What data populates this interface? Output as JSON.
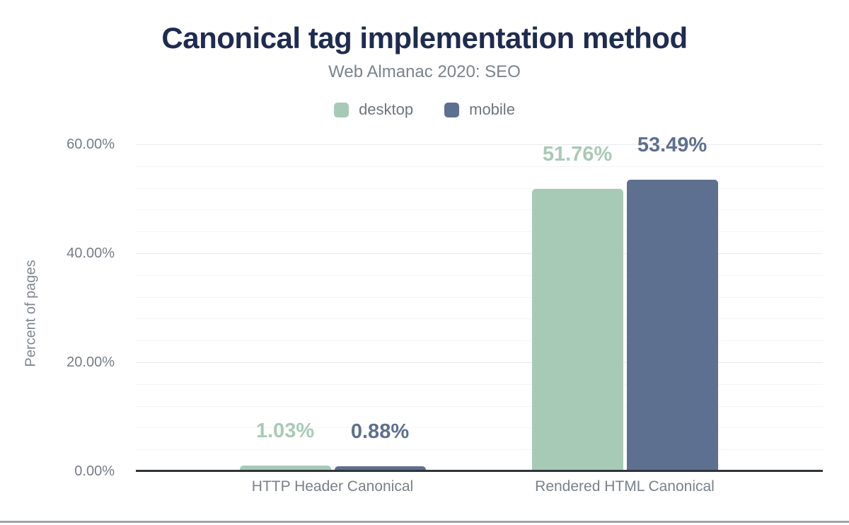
{
  "chart_data": {
    "type": "bar",
    "title": "Canonical tag implementation method",
    "subtitle": "Web Almanac 2020: SEO",
    "ylabel": "Percent of pages",
    "categories": [
      "HTTP Header Canonical",
      "Rendered HTML Canonical"
    ],
    "series": [
      {
        "name": "desktop",
        "color": "#a7cab7",
        "values": [
          1.03,
          51.76
        ],
        "value_labels": [
          "1.03%",
          "51.76%"
        ]
      },
      {
        "name": "mobile",
        "color": "#5e708f",
        "values": [
          0.88,
          53.49
        ],
        "value_labels": [
          "0.88%",
          "53.49%"
        ]
      }
    ],
    "ylim": [
      0,
      60
    ],
    "yticks": [
      {
        "value": 0,
        "label": "0.00%"
      },
      {
        "value": 20,
        "label": "20.00%"
      },
      {
        "value": 40,
        "label": "40.00%"
      },
      {
        "value": 60,
        "label": "60.00%"
      }
    ],
    "minor_gridline_step": 4,
    "major_gridline_step": 20,
    "grid": true,
    "legend_position": "top"
  },
  "colors": {
    "title": "#1f2b50",
    "subtitle_text": "#7b838b",
    "axis_line": "#2f3438",
    "tick_text": "#757d85",
    "major_grid": "#e8eaeb",
    "minor_grid": "#f4f5f5",
    "desktop": "#a7cab7",
    "mobile": "#5e708f"
  }
}
